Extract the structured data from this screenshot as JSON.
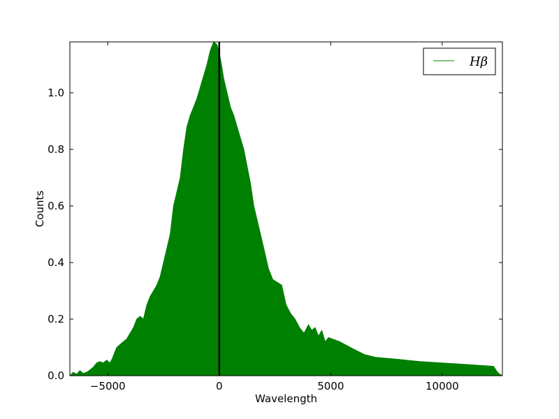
{
  "chart_data": {
    "type": "area",
    "xlabel": "Wavelength",
    "ylabel": "Counts",
    "xlim": [
      -6700,
      12700
    ],
    "ylim": [
      0,
      1.18
    ],
    "xticks": [
      -5000,
      0,
      5000,
      10000
    ],
    "xtick_labels": [
      "−5000",
      "0",
      "5000",
      "10000"
    ],
    "yticks": [
      0.0,
      0.2,
      0.4,
      0.6,
      0.8,
      1.0
    ],
    "ytick_labels": [
      "0.0",
      "0.2",
      "0.4",
      "0.6",
      "0.8",
      "1.0"
    ],
    "grid": false,
    "legend_position": "top-right",
    "vertical_line_x": 0,
    "fill_color": "#008000",
    "line_color": "#008000",
    "vline_color": "#000000",
    "series": [
      {
        "name": "Hβ",
        "x": [
          -6700,
          -6550,
          -6400,
          -6250,
          -6100,
          -5950,
          -5800,
          -5650,
          -5500,
          -5350,
          -5200,
          -5050,
          -4900,
          -4800,
          -4700,
          -4600,
          -4450,
          -4300,
          -4150,
          -4000,
          -3850,
          -3700,
          -3550,
          -3400,
          -3250,
          -3100,
          -2950,
          -2800,
          -2650,
          -2500,
          -2350,
          -2200,
          -2050,
          -1900,
          -1750,
          -1600,
          -1450,
          -1300,
          -1150,
          -1000,
          -850,
          -700,
          -550,
          -400,
          -250,
          -100,
          0,
          100,
          200,
          350,
          500,
          650,
          800,
          950,
          1100,
          1250,
          1400,
          1550,
          1700,
          1850,
          2000,
          2200,
          2400,
          2600,
          2800,
          3000,
          3200,
          3400,
          3600,
          3800,
          4000,
          4150,
          4300,
          4450,
          4600,
          4750,
          4900,
          5400,
          6000,
          6500,
          7000,
          8000,
          9000,
          10000,
          11000,
          12000,
          12300,
          12500,
          12700
        ],
        "values": [
          0.0,
          0.012,
          0.005,
          0.018,
          0.008,
          0.012,
          0.02,
          0.03,
          0.045,
          0.05,
          0.045,
          0.055,
          0.045,
          0.06,
          0.08,
          0.1,
          0.11,
          0.12,
          0.13,
          0.15,
          0.17,
          0.2,
          0.21,
          0.2,
          0.25,
          0.28,
          0.3,
          0.32,
          0.35,
          0.4,
          0.45,
          0.5,
          0.6,
          0.65,
          0.7,
          0.8,
          0.88,
          0.92,
          0.95,
          0.98,
          1.02,
          1.06,
          1.1,
          1.15,
          1.18,
          1.17,
          1.14,
          1.1,
          1.05,
          1.0,
          0.95,
          0.92,
          0.88,
          0.84,
          0.8,
          0.74,
          0.68,
          0.6,
          0.55,
          0.5,
          0.45,
          0.38,
          0.34,
          0.33,
          0.32,
          0.25,
          0.22,
          0.2,
          0.17,
          0.15,
          0.18,
          0.16,
          0.17,
          0.14,
          0.16,
          0.12,
          0.135,
          0.12,
          0.095,
          0.075,
          0.065,
          0.058,
          0.05,
          0.045,
          0.04,
          0.035,
          0.033,
          0.01,
          0.0
        ]
      }
    ]
  }
}
